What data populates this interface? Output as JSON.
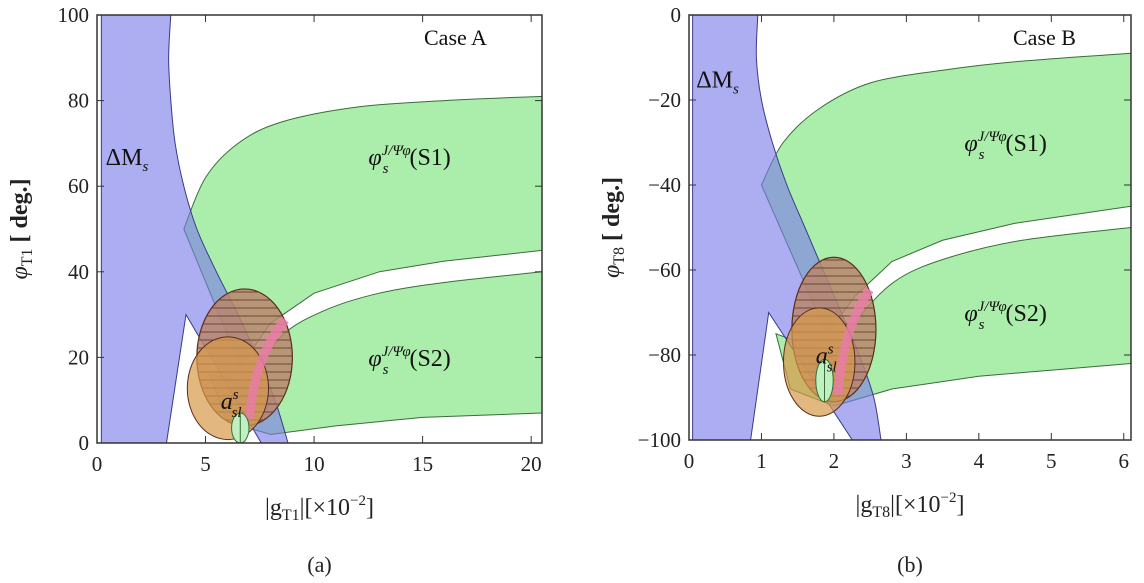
{
  "chart_data": [
    {
      "type": "area",
      "panel_label": "(a)",
      "case_label": "Case A",
      "xlabel": "|g",
      "xlabel_sub": "T1",
      "xlabel_unit": "|[×10",
      "xlabel_exp": "−2",
      "xlabel_close": "]",
      "ylabel": "φ",
      "ylabel_sub": "T1",
      "ylabel_unit": " [ deg.]",
      "xlim": [
        0,
        20.5
      ],
      "ylim": [
        0,
        100
      ],
      "xticks": [
        0,
        5,
        10,
        15,
        20
      ],
      "yticks": [
        0,
        20,
        40,
        60,
        80,
        100
      ],
      "regions": [
        {
          "name": "ΔMs",
          "label_main": "ΔM",
          "label_sub": "s",
          "label_at": [
            0.4,
            65
          ],
          "color": "#7b7bea"
        },
        {
          "name": "φs J/Ψφ (S1)",
          "label_main": "φ",
          "label_sup": "J/Ψφ",
          "label_sub": "s",
          "label_tail": "(S1)",
          "label_at": [
            12.5,
            65
          ],
          "color": "#8fe88f"
        },
        {
          "name": "φs J/Ψφ (S2)",
          "label_main": "φ",
          "label_sup": "J/Ψφ",
          "label_sub": "s",
          "label_tail": "(S2)",
          "label_at": [
            12.5,
            18
          ],
          "color": "#8fe88f"
        },
        {
          "name": "a_sl^s",
          "label_main": "a",
          "label_sup": "s",
          "label_sub": "sl",
          "label_at": [
            5.7,
            8
          ],
          "color": "#d79a4a"
        }
      ],
      "boundaries": {
        "dms_left": [
          [
            0.2,
            0
          ],
          [
            0.2,
            100
          ]
        ],
        "dms_top": [
          [
            0.2,
            100
          ],
          [
            3.4,
            100
          ]
        ],
        "dms_right_curve": [
          [
            3.4,
            100
          ],
          [
            3.3,
            90
          ],
          [
            3.4,
            80
          ],
          [
            3.6,
            70
          ],
          [
            4.0,
            60
          ],
          [
            4.6,
            50
          ],
          [
            5.5,
            40
          ],
          [
            6.5,
            30
          ],
          [
            7.4,
            20
          ],
          [
            8.2,
            10
          ],
          [
            8.8,
            0
          ]
        ],
        "dms_lower_edge": [
          [
            3.2,
            0
          ],
          [
            3.3,
            10
          ],
          [
            3.6,
            20
          ],
          [
            4.1,
            30
          ]
        ],
        "s1_top": [
          [
            4.0,
            50
          ],
          [
            5.0,
            62
          ],
          [
            6.5,
            70
          ],
          [
            8.5,
            75
          ],
          [
            12,
            78.5
          ],
          [
            16,
            80
          ],
          [
            20.5,
            81
          ]
        ],
        "s1_bottom": [
          [
            6.6,
            18
          ],
          [
            8,
            28
          ],
          [
            10,
            35
          ],
          [
            13,
            40
          ],
          [
            16,
            42.5
          ],
          [
            20.5,
            45
          ]
        ],
        "s2_top": [
          [
            7.0,
            14
          ],
          [
            8.5,
            25
          ],
          [
            10.5,
            31
          ],
          [
            13,
            35
          ],
          [
            16,
            37.5
          ],
          [
            20.5,
            40
          ]
        ],
        "s2_bottom": [
          [
            5.2,
            16
          ],
          [
            6,
            5
          ],
          [
            8,
            2
          ],
          [
            11,
            4
          ],
          [
            15,
            6
          ],
          [
            20.5,
            7
          ]
        ],
        "asl_center": [
          6.8,
          20
        ],
        "asl_rx": 2.2,
        "asl_ry": 16,
        "green_ellipse_center": [
          6.6,
          3.5
        ],
        "green_ellipse_rx": 0.4,
        "green_ellipse_ry": 3.5
      }
    },
    {
      "type": "area",
      "panel_label": "(b)",
      "case_label": "Case B",
      "xlabel": "|g",
      "xlabel_sub": "T8",
      "xlabel_unit": "|[×10",
      "xlabel_exp": "−2",
      "xlabel_close": "]",
      "ylabel": "φ",
      "ylabel_sub": "T8",
      "ylabel_unit": " [ deg.]",
      "xlim": [
        0,
        6.1
      ],
      "ylim": [
        -100,
        0
      ],
      "xticks": [
        0,
        1,
        2,
        3,
        4,
        5,
        6
      ],
      "yticks": [
        -100,
        -80,
        -60,
        -40,
        -20,
        0
      ],
      "regions": [
        {
          "name": "ΔMs",
          "label_main": "ΔM",
          "label_sub": "s",
          "label_at": [
            0.1,
            -17
          ],
          "color": "#7b7bea"
        },
        {
          "name": "φs J/Ψφ (S1)",
          "label_main": "φ",
          "label_sup": "J/Ψφ",
          "label_sub": "s",
          "label_tail": "(S1)",
          "label_at": [
            3.8,
            -32
          ],
          "color": "#8fe88f"
        },
        {
          "name": "φs J/Ψφ (S2)",
          "label_main": "φ",
          "label_sup": "J/Ψφ",
          "label_sub": "s",
          "label_tail": "(S2)",
          "label_at": [
            3.8,
            -72
          ],
          "color": "#8fe88f"
        },
        {
          "name": "a_sl^s",
          "label_main": "a",
          "label_sup": "s",
          "label_sub": "sl",
          "label_at": [
            1.75,
            -82
          ],
          "color": "#d79a4a"
        }
      ],
      "boundaries": {
        "dms_left": [
          [
            0.05,
            -100
          ],
          [
            0.05,
            0
          ]
        ],
        "dms_top": [
          [
            0.05,
            0
          ],
          [
            0.95,
            0
          ]
        ],
        "dms_right_curve": [
          [
            0.95,
            0
          ],
          [
            0.93,
            -10
          ],
          [
            1.0,
            -20
          ],
          [
            1.15,
            -30
          ],
          [
            1.35,
            -40
          ],
          [
            1.6,
            -50
          ],
          [
            1.85,
            -60
          ],
          [
            2.1,
            -70
          ],
          [
            2.35,
            -80
          ],
          [
            2.55,
            -90
          ],
          [
            2.65,
            -100
          ]
        ],
        "dms_lower_edge": [
          [
            0.85,
            -100
          ],
          [
            0.85,
            -90
          ],
          [
            0.95,
            -80
          ],
          [
            1.1,
            -70
          ]
        ],
        "s1_top": [
          [
            1.0,
            -40
          ],
          [
            1.3,
            -30
          ],
          [
            1.8,
            -22
          ],
          [
            2.5,
            -16
          ],
          [
            3.5,
            -13
          ],
          [
            4.5,
            -11
          ],
          [
            6.1,
            -9
          ]
        ],
        "s1_bottom": [
          [
            1.9,
            -75
          ],
          [
            2.3,
            -66
          ],
          [
            2.8,
            -58
          ],
          [
            3.5,
            -53
          ],
          [
            4.5,
            -49
          ],
          [
            6.1,
            -45
          ]
        ],
        "s2_top": [
          [
            2.0,
            -80
          ],
          [
            2.4,
            -70
          ],
          [
            2.9,
            -62
          ],
          [
            3.6,
            -57
          ],
          [
            4.6,
            -53
          ],
          [
            6.1,
            -50
          ]
        ],
        "s2_bottom": [
          [
            1.2,
            -75
          ],
          [
            1.4,
            -88
          ],
          [
            2.0,
            -92
          ],
          [
            2.8,
            -88
          ],
          [
            4,
            -85
          ],
          [
            6.1,
            -82
          ]
        ],
        "asl_center": [
          2.0,
          -74
        ],
        "asl_rx": 0.58,
        "asl_ry": 17,
        "green_ellipse_center": [
          1.87,
          -86
        ],
        "green_ellipse_rx": 0.12,
        "green_ellipse_ry": 5
      }
    }
  ]
}
